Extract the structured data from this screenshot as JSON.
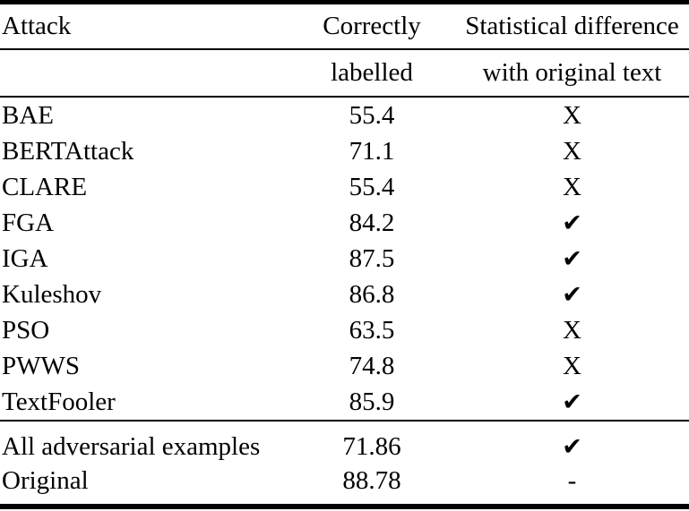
{
  "page": {
    "background_color": "#ffffff",
    "text_color": "#000000"
  },
  "table": {
    "header": {
      "col1_line1": "Attack",
      "col1_line2": "",
      "col2_line1": "Correctly",
      "col2_line2": "labelled",
      "col3_line1": "Statistical difference",
      "col3_line2": "with original text"
    },
    "rows": [
      {
        "attack": "BAE",
        "correctly_labelled": "55.4",
        "stat_diff": "X"
      },
      {
        "attack": "BERTAttack",
        "correctly_labelled": "71.1",
        "stat_diff": "X"
      },
      {
        "attack": "CLARE",
        "correctly_labelled": "55.4",
        "stat_diff": "X"
      },
      {
        "attack": "FGA",
        "correctly_labelled": "84.2",
        "stat_diff": "✔"
      },
      {
        "attack": "IGA",
        "correctly_labelled": "87.5",
        "stat_diff": "✔"
      },
      {
        "attack": "Kuleshov",
        "correctly_labelled": "86.8",
        "stat_diff": "✔"
      },
      {
        "attack": "PSO",
        "correctly_labelled": "63.5",
        "stat_diff": "X"
      },
      {
        "attack": "PWWS",
        "correctly_labelled": "74.8",
        "stat_diff": "X"
      },
      {
        "attack": "TextFooler",
        "correctly_labelled": "85.9",
        "stat_diff": "✔"
      }
    ],
    "summary_rows": [
      {
        "attack": "All adversarial examples",
        "correctly_labelled": "71.86",
        "stat_diff": "✔"
      },
      {
        "attack": "Original",
        "correctly_labelled": "88.78",
        "stat_diff": "-"
      }
    ]
  }
}
